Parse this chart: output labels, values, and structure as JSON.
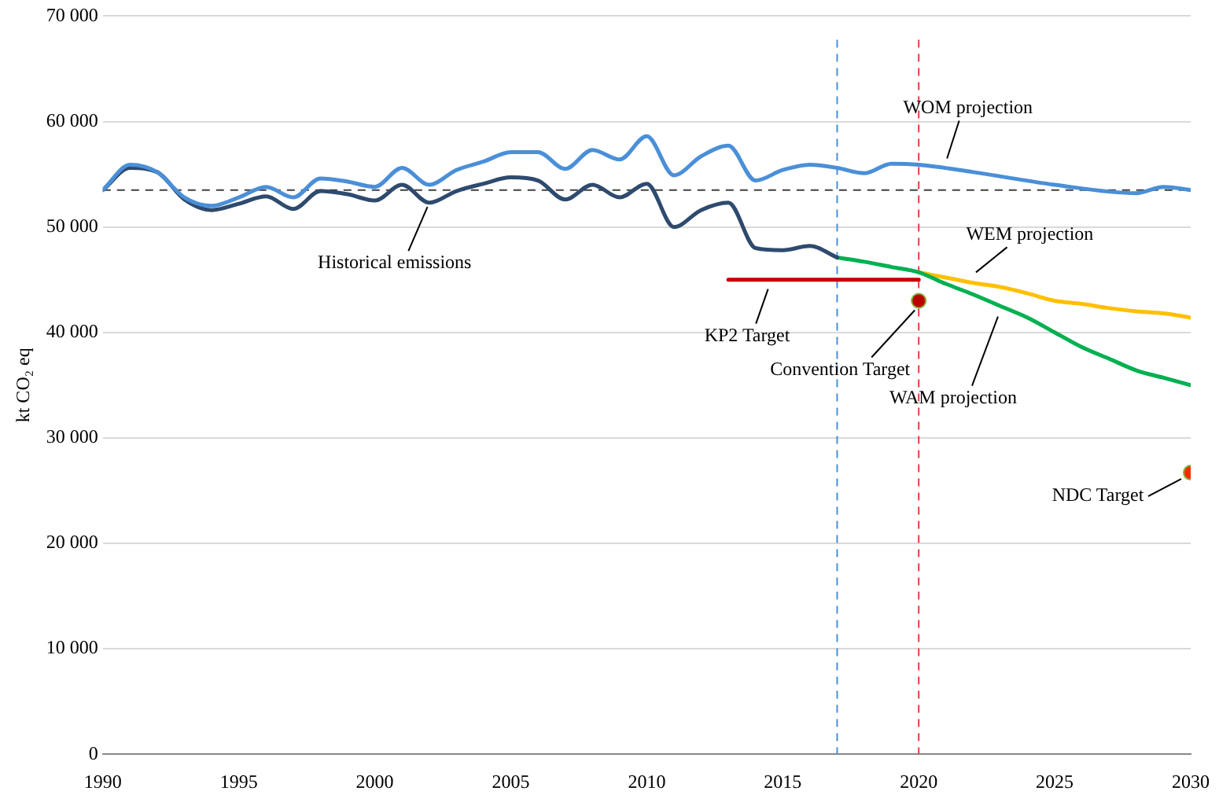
{
  "chart_data": {
    "type": "line",
    "ylabel": "kt CO₂ eq",
    "xlim": [
      1990,
      2030
    ],
    "xticks": [
      1990,
      1995,
      2000,
      2005,
      2010,
      2015,
      2020,
      2025,
      2030
    ],
    "ylim": [
      0,
      70000
    ],
    "yticks": [
      {
        "value": 0,
        "label": "0"
      },
      {
        "value": 10000,
        "label": "10 000"
      },
      {
        "value": 20000,
        "label": "20 000"
      },
      {
        "value": 30000,
        "label": "30 000"
      },
      {
        "value": 40000,
        "label": "40 000"
      },
      {
        "value": 50000,
        "label": "50 000"
      },
      {
        "value": 60000,
        "label": "60 000"
      },
      {
        "value": 70000,
        "label": "70 000"
      }
    ],
    "grid": "y",
    "legend": false,
    "marker": "none",
    "line_style": "solid",
    "series": [
      {
        "color": "#4a8fd8",
        "x": [
          1990,
          1991,
          1992,
          1993,
          1994,
          1995,
          1996,
          1997,
          1998,
          1999,
          2000,
          2001,
          2002,
          2003,
          2004,
          2005,
          2006,
          2007,
          2008,
          2009,
          2010,
          2011,
          2012,
          2013,
          2014,
          2015,
          2016,
          2017,
          2018,
          2019,
          2020,
          2022,
          2025,
          2028,
          2029,
          2030
        ],
        "values": [
          53500,
          55900,
          55200,
          52800,
          52000,
          52800,
          53800,
          52800,
          54600,
          54300,
          53800,
          55600,
          54000,
          55400,
          56200,
          57100,
          57100,
          55500,
          57300,
          56400,
          58600,
          54900,
          56700,
          57700,
          54400,
          55400,
          55900,
          55600,
          55100,
          56000,
          55900,
          55200,
          54000,
          53200,
          53800,
          53500
        ]
      },
      {
        "color": "#2e4a6e",
        "x": [
          1990,
          1991,
          1992,
          1993,
          1994,
          1995,
          1996,
          1997,
          1998,
          1999,
          2000,
          2001,
          2002,
          2003,
          2004,
          2005,
          2006,
          2007,
          2008,
          2009,
          2010,
          2011,
          2012,
          2013,
          2014,
          2015,
          2016,
          2017
        ],
        "values": [
          53500,
          55600,
          55200,
          52600,
          51600,
          52200,
          52900,
          51700,
          53400,
          53100,
          52500,
          54000,
          52300,
          53400,
          54100,
          54700,
          54400,
          52600,
          54000,
          52800,
          54100,
          50000,
          51600,
          52300,
          48000,
          47800,
          48200,
          47100
        ]
      },
      {
        "color": "#00b050",
        "x": [
          2017,
          2018,
          2019,
          2020,
          2021,
          2022,
          2023,
          2024,
          2025,
          2026,
          2027,
          2028,
          2029,
          2030
        ],
        "values": [
          47100,
          46700,
          46200,
          45700,
          44600,
          43600,
          42500,
          41400,
          40000,
          38600,
          37500,
          36400,
          35700,
          35000
        ]
      },
      {
        "color": "#ffc000",
        "x": [
          2020,
          2021,
          2022,
          2023,
          2024,
          2025,
          2026,
          2027,
          2028,
          2029,
          2030
        ],
        "values": [
          45700,
          45200,
          44700,
          44300,
          43700,
          43000,
          42700,
          42300,
          42000,
          41800,
          41400
        ]
      },
      {
        "color": "#c00000",
        "x": [
          2013,
          2020
        ],
        "values": [
          45000,
          45000
        ]
      },
      {
        "type": "scatter",
        "marker": "circle",
        "color": "#c00000",
        "x": [
          2020
        ],
        "values": [
          43000
        ]
      },
      {
        "type": "scatter",
        "marker": "circle",
        "color": "#ff2a00",
        "x": [
          2030
        ],
        "values": [
          26700
        ]
      }
    ],
    "ref_lines": [
      {
        "axis": "y",
        "value": 53500,
        "color": "#404040",
        "line_style": "dashed"
      },
      {
        "axis": "x",
        "value": 2017,
        "color": "#4a8fd8",
        "line_style": "dashed"
      },
      {
        "axis": "x",
        "value": 2020,
        "color": "#e04040",
        "line_style": "dashed"
      }
    ],
    "annotations": [
      {
        "text": "Historical emissions",
        "x": 2002,
        "y": 52800
      },
      {
        "text": "WOM projection",
        "x": 2021,
        "y": 55600
      },
      {
        "text": "WEM projection",
        "x": 2022,
        "y": 44800
      },
      {
        "text": "WAM projection",
        "x": 2023,
        "y": 42400
      },
      {
        "text": "KP2 Target",
        "x": 2014.5,
        "y": 45000
      },
      {
        "text": "Convention Target",
        "x": 2020,
        "y": 43000
      },
      {
        "text": "NDC Target",
        "x": 2030,
        "y": 26700
      }
    ]
  }
}
